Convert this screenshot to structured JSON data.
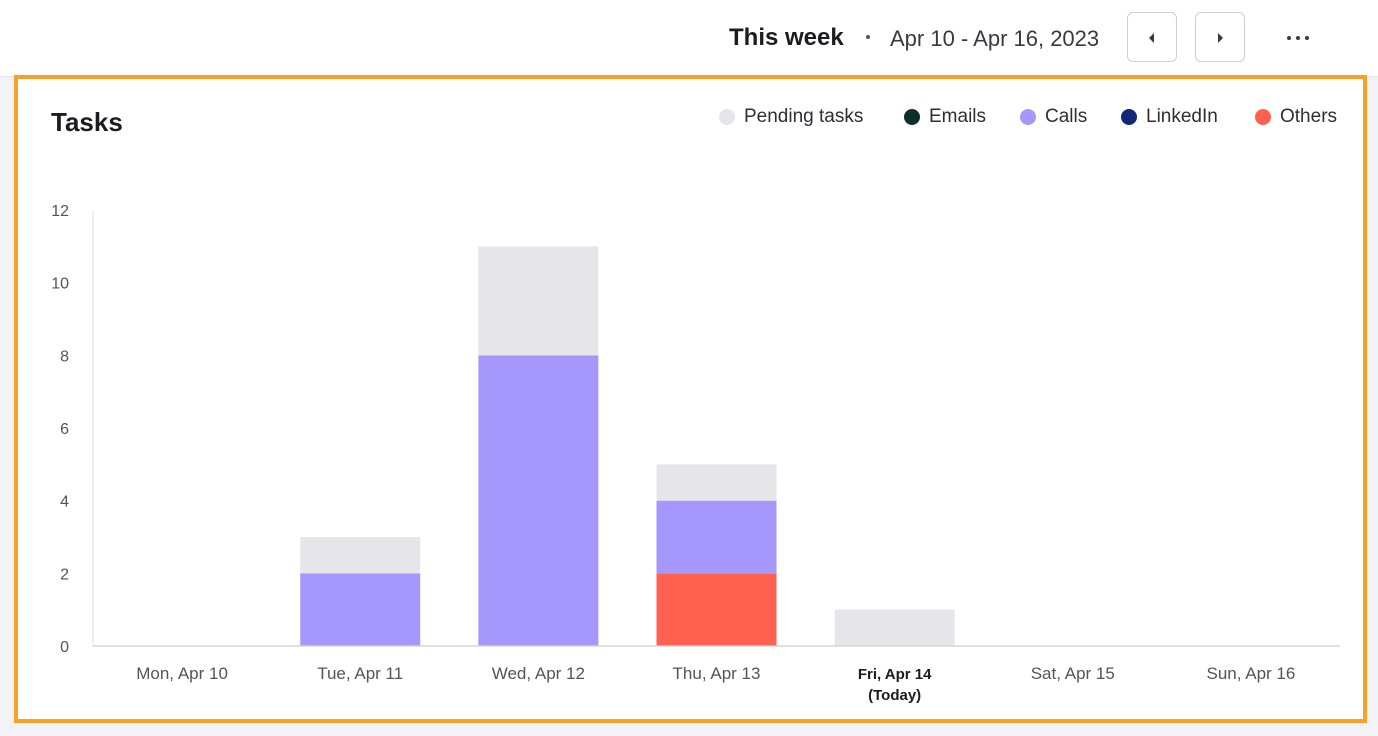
{
  "header": {
    "title": "This week",
    "date_range": "Apr 10 - Apr 16, 2023"
  },
  "panel": {
    "title": "Tasks"
  },
  "chart_data": {
    "type": "bar",
    "stacked": true,
    "title": "Tasks",
    "categories": [
      "Mon, Apr 10",
      "Tue, Apr 11",
      "Wed, Apr 12",
      "Thu, Apr 13",
      "Fri, Apr 14",
      "Sat, Apr 15",
      "Sun, Apr 16"
    ],
    "today_index": 4,
    "today_suffix": "(Today)",
    "series": [
      {
        "name": "Others",
        "color": "#ff6150",
        "values": [
          0,
          0,
          0,
          2,
          0,
          0,
          0
        ]
      },
      {
        "name": "LinkedIn",
        "color": "#10287a",
        "values": [
          0,
          0,
          0,
          0,
          0,
          0,
          0
        ]
      },
      {
        "name": "Calls",
        "color": "#a697fd",
        "values": [
          0,
          2,
          8,
          2,
          0,
          0,
          0
        ]
      },
      {
        "name": "Emails",
        "color": "#0d2e2a",
        "values": [
          0,
          0,
          0,
          0,
          0,
          0,
          0
        ]
      },
      {
        "name": "Pending tasks",
        "color": "#e6e5e9",
        "values": [
          0,
          1,
          3,
          1,
          1,
          0,
          0
        ]
      }
    ],
    "legend_order": [
      "Pending tasks",
      "Emails",
      "Calls",
      "LinkedIn",
      "Others"
    ],
    "legend_position": "top-right",
    "ylim": [
      0,
      12
    ],
    "yticks": [
      0,
      2,
      4,
      6,
      8,
      10,
      12
    ],
    "grid": false
  }
}
